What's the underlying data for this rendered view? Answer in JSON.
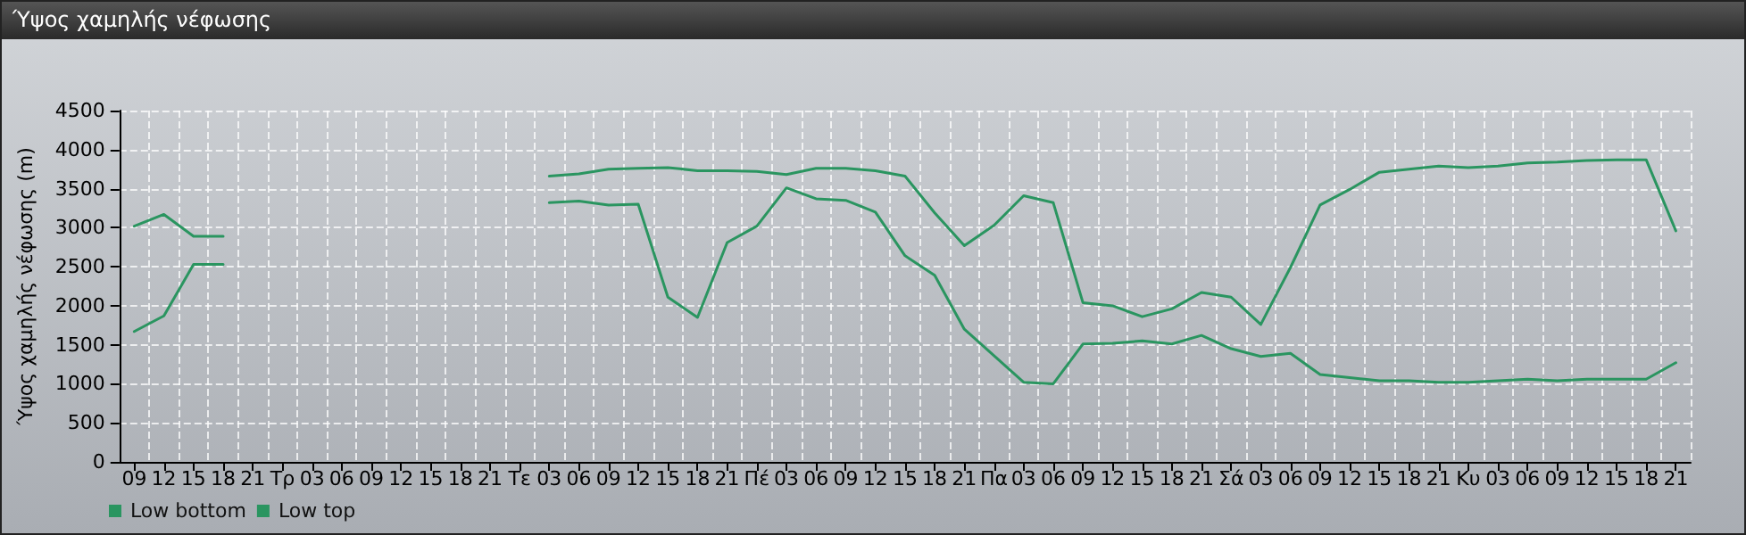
{
  "chart_data": {
    "type": "line",
    "title": "Ύψος χαμηλής νέφωσης",
    "ylabel": "Ύψος χαμηλής νέφωσης (m)",
    "categories": [
      "09",
      "12",
      "15",
      "18",
      "21",
      "Τρ",
      "03",
      "06",
      "09",
      "12",
      "15",
      "18",
      "21",
      "Τε",
      "03",
      "06",
      "09",
      "12",
      "15",
      "18",
      "21",
      "Πέ",
      "03",
      "06",
      "09",
      "12",
      "15",
      "18",
      "21",
      "Πα",
      "03",
      "06",
      "09",
      "12",
      "15",
      "18",
      "21",
      "Σά",
      "03",
      "06",
      "09",
      "12",
      "15",
      "18",
      "21",
      "Κυ",
      "03",
      "06",
      "09",
      "12",
      "15",
      "18",
      "21"
    ],
    "series": [
      {
        "name": "Low bottom",
        "color": "#2a9560",
        "values": [
          1670,
          1870,
          2530,
          2530,
          null,
          null,
          null,
          null,
          null,
          null,
          null,
          null,
          null,
          null,
          3320,
          3340,
          3290,
          3300,
          2110,
          1850,
          2810,
          3020,
          3510,
          3370,
          3350,
          3200,
          2640,
          2390,
          1700,
          1360,
          1020,
          1000,
          1510,
          1520,
          1550,
          1510,
          1620,
          1450,
          1350,
          1390,
          1120,
          1080,
          1040,
          1040,
          1020,
          1020,
          1040,
          1060,
          1040,
          1060,
          1060,
          1060,
          1270
        ]
      },
      {
        "name": "Low top",
        "color": "#2a9560",
        "values": [
          3020,
          3170,
          2890,
          2890,
          null,
          null,
          null,
          null,
          null,
          null,
          null,
          null,
          null,
          null,
          3660,
          3690,
          3750,
          3760,
          3770,
          3730,
          3730,
          3720,
          3680,
          3760,
          3760,
          3730,
          3660,
          3190,
          2770,
          3030,
          3410,
          3320,
          2040,
          2000,
          1860,
          1960,
          2170,
          2110,
          1760,
          2490,
          3290,
          3490,
          3710,
          3750,
          3790,
          3770,
          3790,
          3830,
          3840,
          3860,
          3870,
          3870,
          2960
        ]
      }
    ],
    "ylim": [
      0,
      4500
    ],
    "yticks": [
      0,
      500,
      1000,
      1500,
      2000,
      2500,
      3000,
      3500,
      4000,
      4500
    ],
    "grid": true,
    "legend": "bottom left",
    "marker": "none",
    "line_style": "solid"
  }
}
